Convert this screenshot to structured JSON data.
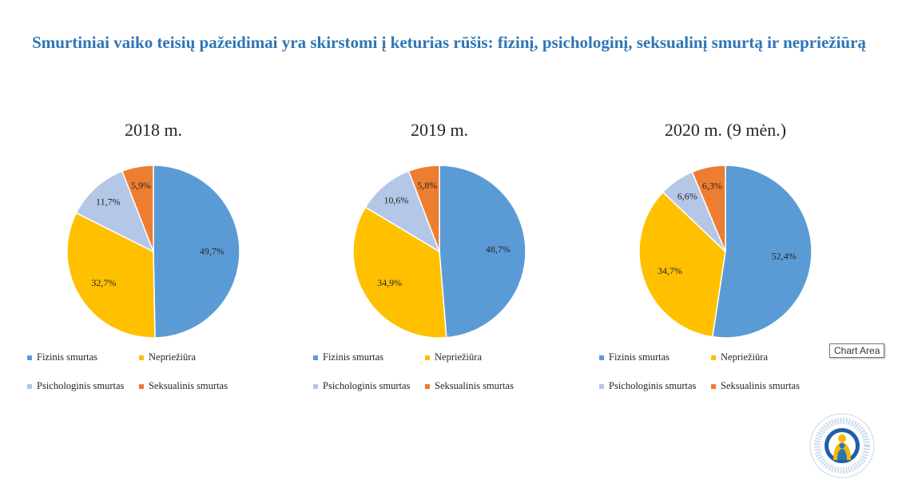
{
  "title": "Smurtiniai vaiko teisių pažeidimai yra skirstomi į keturias rūšis: fizinį, psichologinį, seksualinį smurtą ir nepriežiūrą",
  "tooltip": "Chart Area",
  "colors": {
    "title": "#2E75B6",
    "Fizinis smurtas": "#5B9BD5",
    "Nepriežiūra": "#FFC000",
    "Psichologinis smurtas": "#B4C7E7",
    "Seksualinis smurtas": "#ED7D31"
  },
  "chart_data": [
    {
      "type": "pie",
      "title": "2018 m.",
      "labels": [
        "Fizinis smurtas",
        "Nepriežiūra",
        "Psichologinis smurtas",
        "Seksualinis smurtas"
      ],
      "values": [
        49.7,
        32.7,
        11.7,
        5.9
      ],
      "value_labels": [
        "49,7%",
        "32,7%",
        "11,7%",
        "5,9%"
      ],
      "legend": [
        "Fizinis smurtas",
        "Nepriežiūra",
        "Psichologinis smurtas",
        "Seksualinis smurtas"
      ],
      "legend_position": "bottom"
    },
    {
      "type": "pie",
      "title": "2019 m.",
      "labels": [
        "Fizinis smurtas",
        "Nepriežiūra",
        "Psichologinis smurtas",
        "Seksualinis smurtas"
      ],
      "values": [
        48.7,
        34.9,
        10.6,
        5.8
      ],
      "value_labels": [
        "48,7%",
        "34,9%",
        "10,6%",
        "5,8%"
      ],
      "legend": [
        "Fizinis smurtas",
        "Nepriežiūra",
        "Psichologinis smurtas",
        "Seksualinis smurtas"
      ],
      "legend_position": "bottom"
    },
    {
      "type": "pie",
      "title": "2020 m. (9 mėn.)",
      "labels": [
        "Fizinis smurtas",
        "Nepriežiūra",
        "Psichologinis smurtas",
        "Seksualinis smurtas"
      ],
      "values": [
        52.4,
        34.7,
        6.6,
        6.3
      ],
      "value_labels": [
        "52,4%",
        "34,7%",
        "6,6%",
        "6,3%"
      ],
      "legend": [
        "Fizinis smurtas",
        "Nepriežiūra",
        "Psichologinis smurtas",
        "Seksualinis smurtas"
      ],
      "legend_position": "bottom"
    }
  ]
}
